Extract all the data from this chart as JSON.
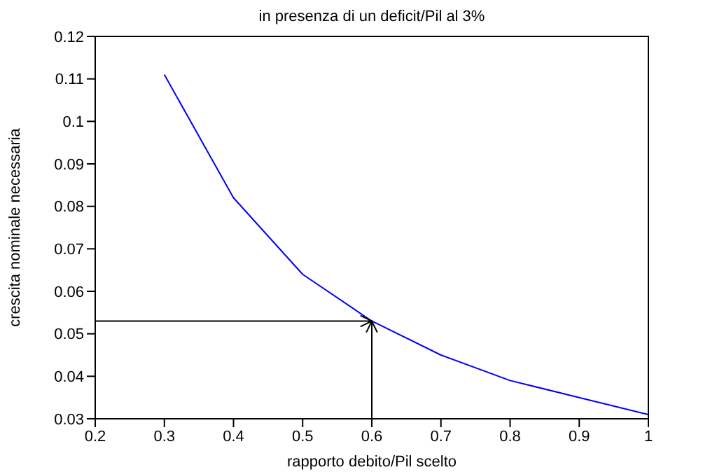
{
  "chart_data": {
    "type": "line",
    "title": "in presenza di un deficit/Pil al 3%",
    "xlabel": "rapporto debito/Pil scelto",
    "ylabel": "crescita nominale necessaria",
    "x": [
      0.3,
      0.4,
      0.5,
      0.6,
      0.7,
      0.8,
      0.9,
      1.0
    ],
    "series": [
      {
        "color": "#0000ff",
        "values": [
          0.111,
          0.082,
          0.064,
          0.053,
          0.045,
          0.039,
          0.035,
          0.031
        ]
      }
    ],
    "xlim": [
      0.2,
      1
    ],
    "xticks": [
      0.2,
      0.3,
      0.4,
      0.5,
      0.6,
      0.7,
      0.8,
      0.9,
      1
    ],
    "ylim": [
      0.03,
      0.12
    ],
    "yticks": [
      0.03,
      0.04,
      0.05,
      0.06,
      0.07,
      0.08,
      0.09,
      0.1,
      0.11,
      0.12
    ],
    "ref_lines": [
      {
        "axis": "y",
        "value": 0.053,
        "color": "#000000"
      },
      {
        "axis": "x",
        "value": 0.6,
        "color": "#000000"
      }
    ],
    "grid": false,
    "legend": false,
    "marker": "none",
    "line_style": "solid"
  }
}
